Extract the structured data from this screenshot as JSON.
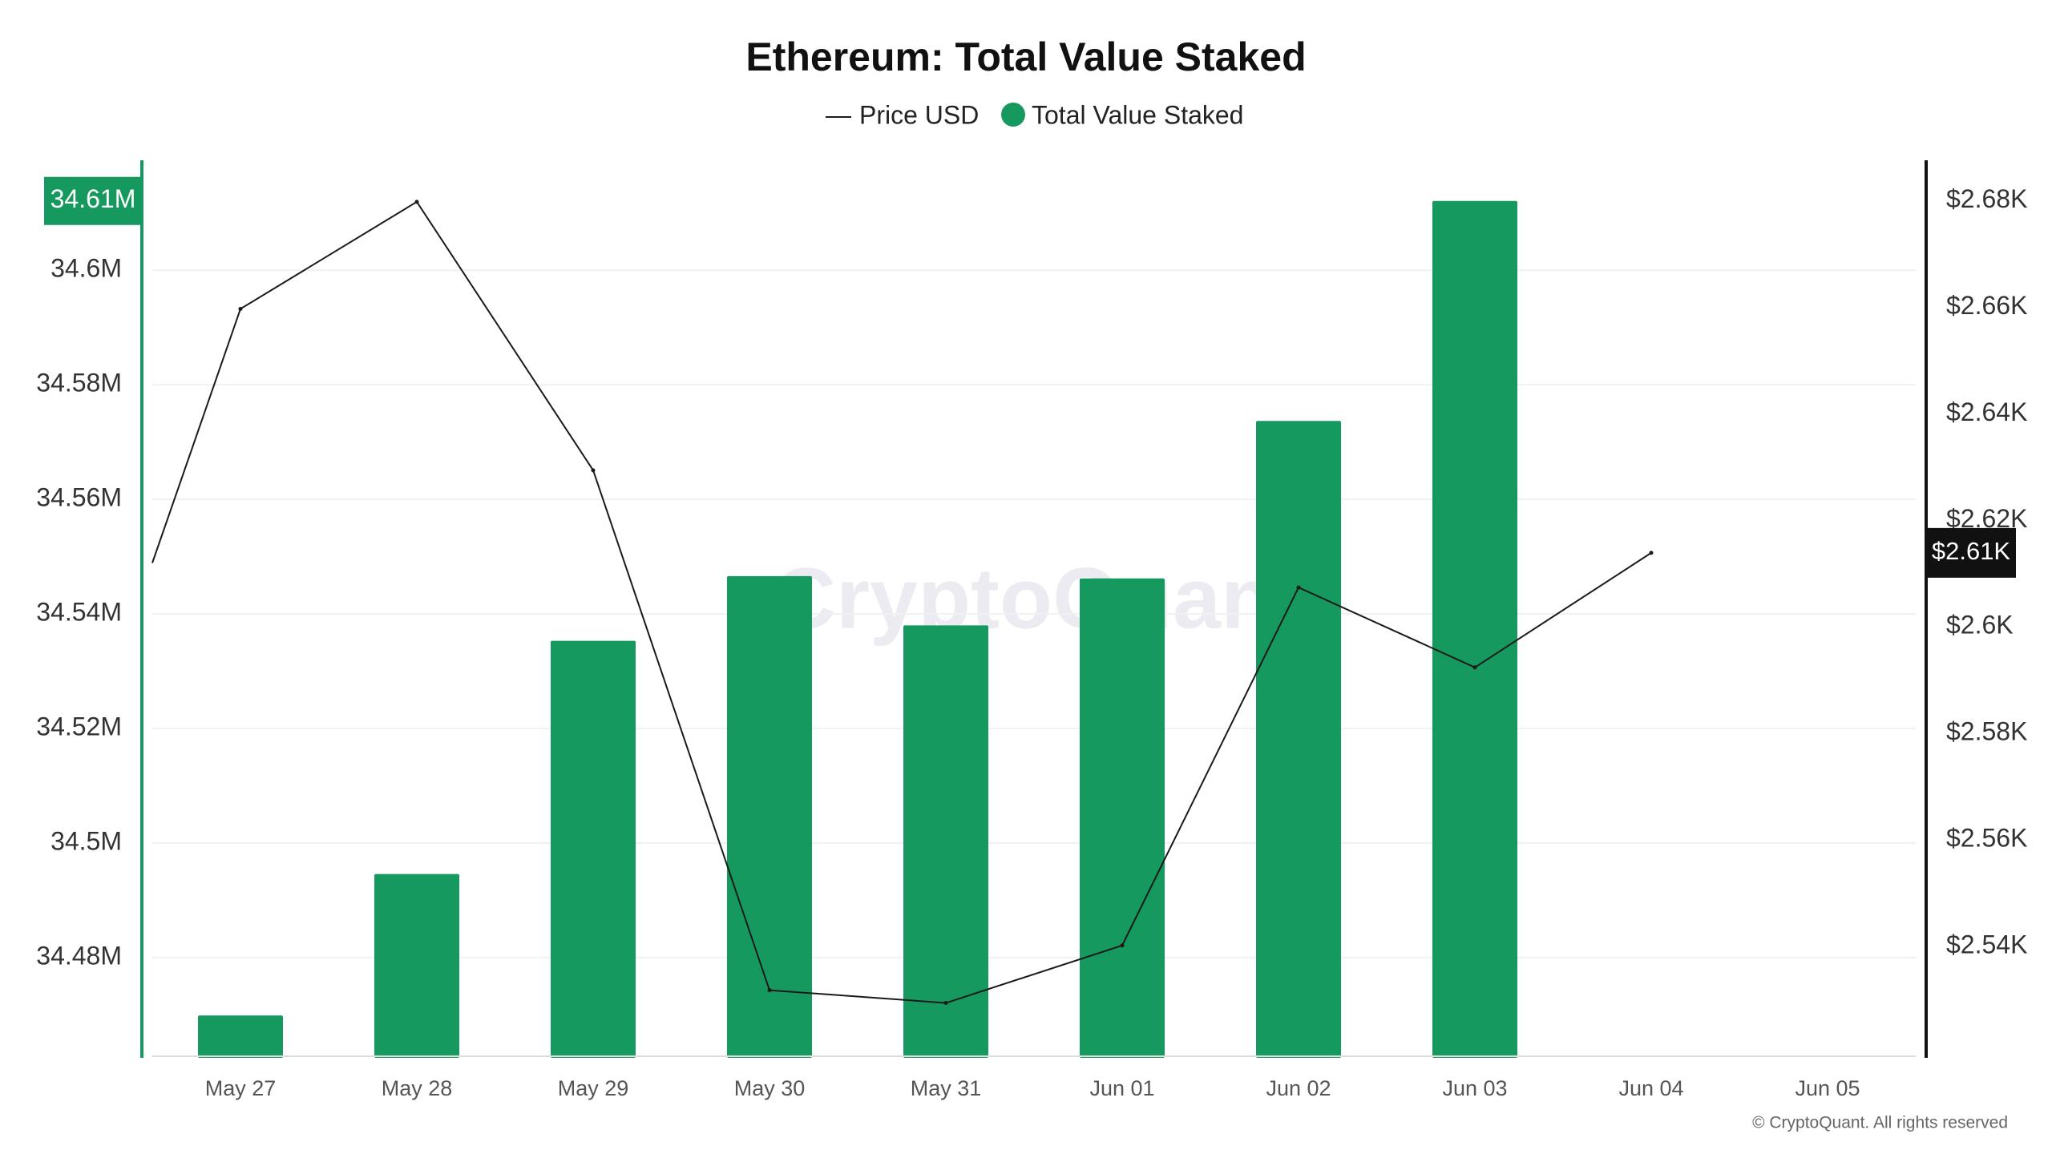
{
  "chart_data": {
    "type": "bar",
    "title": "Ethereum: Total Value Staked",
    "legend": {
      "placement": "top-center",
      "entries": [
        {
          "label": "Price USD",
          "marker": "line"
        },
        {
          "label": "Total Value Staked",
          "marker": "dot"
        }
      ]
    },
    "categories": [
      "May 27",
      "May 28",
      "May 29",
      "May 30",
      "May 31",
      "Jun 01",
      "Jun 02",
      "Jun 03",
      "Jun 04",
      "Jun 05"
    ],
    "series": [
      {
        "name": "Total Value Staked",
        "type": "bar",
        "axis": "left",
        "values": [
          34.4699,
          34.4946,
          34.5353,
          34.5466,
          34.538,
          34.5462,
          34.5737,
          34.6121,
          null,
          null
        ]
      },
      {
        "name": "Price USD",
        "type": "line",
        "axis": "right",
        "start_value": 2.612,
        "values": [
          2.6597,
          2.6798,
          2.6294,
          2.5318,
          2.5294,
          2.5402,
          2.6074,
          2.5924,
          2.6139,
          null
        ]
      }
    ],
    "y_left": {
      "unit": "M",
      "ticks": [
        "34.48M",
        "34.5M",
        "34.52M",
        "34.54M",
        "34.56M",
        "34.58M",
        "34.6M"
      ],
      "tick_values": [
        34.48,
        34.5,
        34.52,
        34.54,
        34.56,
        34.58,
        34.6
      ],
      "ylim": [
        34.4625,
        34.6192
      ],
      "highlight_label": "34.61M",
      "highlight_value": 34.6121
    },
    "y_right": {
      "unit": "K",
      "ticks": [
        "$2.54K",
        "$2.56K",
        "$2.58K",
        "$2.6K",
        "$2.62K",
        "$2.64K",
        "$2.66K",
        "$2.68K"
      ],
      "tick_values": [
        2.54,
        2.56,
        2.58,
        2.6,
        2.62,
        2.64,
        2.66,
        2.68
      ],
      "ylim": [
        2.5191,
        2.6876
      ],
      "highlight_label": "$2.61K",
      "highlight_value": 2.6139
    },
    "grid": true,
    "watermark": "CryptoQuant",
    "copyright": "© CryptoQuant. All rights reserved",
    "colors": {
      "bar": "#16995f",
      "line": "#1a1a1a",
      "left_axis": "#16995f",
      "right_axis": "#111111",
      "right_highlight_bg": "#111111",
      "grid": "#f1f1f1",
      "tick_text": "#333333",
      "x_tick_text": "#555555",
      "watermark": "#e9e6ef"
    }
  }
}
